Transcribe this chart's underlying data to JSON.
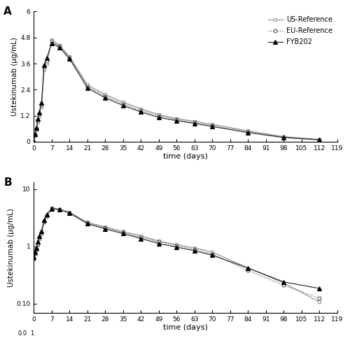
{
  "time_points_a": [
    0,
    0.5,
    1,
    1.5,
    2,
    3,
    4,
    5,
    7,
    10,
    14,
    21,
    28,
    35,
    42,
    49,
    56,
    63,
    70,
    84,
    98,
    112
  ],
  "fyb202_linear": [
    0.0,
    0.35,
    0.65,
    1.05,
    1.35,
    1.8,
    3.55,
    3.85,
    4.55,
    4.35,
    3.82,
    2.48,
    2.02,
    1.67,
    1.37,
    1.12,
    0.97,
    0.84,
    0.7,
    0.42,
    0.19,
    0.085
  ],
  "eu_ref_linear": [
    0.0,
    0.32,
    0.6,
    0.98,
    1.28,
    1.7,
    3.45,
    3.72,
    4.62,
    4.4,
    3.87,
    2.55,
    2.1,
    1.75,
    1.44,
    1.2,
    1.02,
    0.89,
    0.74,
    0.46,
    0.21,
    0.095
  ],
  "us_ref_linear": [
    0.0,
    0.3,
    0.55,
    0.9,
    1.18,
    1.6,
    3.3,
    3.6,
    4.68,
    4.45,
    3.92,
    2.62,
    2.17,
    1.82,
    1.52,
    1.24,
    1.07,
    0.94,
    0.8,
    0.5,
    0.23,
    0.105
  ],
  "time_points_b": [
    0,
    0.5,
    1,
    1.5,
    2,
    3,
    4,
    5,
    7,
    10,
    14,
    21,
    28,
    35,
    42,
    49,
    56,
    63,
    70,
    84,
    98,
    112
  ],
  "fyb202_log": [
    0.65,
    0.8,
    0.95,
    1.2,
    1.5,
    1.85,
    2.9,
    3.6,
    4.55,
    4.35,
    3.82,
    2.48,
    2.02,
    1.67,
    1.37,
    1.12,
    0.97,
    0.84,
    0.7,
    0.42,
    0.24,
    0.185
  ],
  "eu_ref_log": [
    0.62,
    0.76,
    0.9,
    1.12,
    1.42,
    1.75,
    2.75,
    3.45,
    4.62,
    4.4,
    3.87,
    2.55,
    2.1,
    1.75,
    1.44,
    1.2,
    1.02,
    0.89,
    0.74,
    0.38,
    0.21,
    0.125
  ],
  "us_ref_log": [
    0.6,
    0.72,
    0.86,
    1.05,
    1.35,
    1.65,
    2.62,
    3.3,
    4.68,
    4.45,
    3.92,
    2.62,
    2.17,
    1.82,
    1.52,
    1.24,
    1.07,
    0.94,
    0.8,
    0.42,
    0.23,
    0.108
  ],
  "xticks": [
    0,
    7,
    14,
    21,
    28,
    35,
    42,
    49,
    56,
    63,
    70,
    77,
    84,
    91,
    98,
    105,
    112,
    119
  ],
  "xlabel": "time (days)",
  "ylabel": "Ustekinumab (μg/mL)",
  "panel_a_yticks": [
    0,
    1.2,
    2.4,
    3.6,
    4.8,
    6.0
  ],
  "panel_a_ytick_labels": [
    "0",
    "1.2",
    "2.4",
    "3.6",
    "4.8",
    "6"
  ],
  "panel_a_ylim": [
    0,
    6.0
  ],
  "panel_b_ylim_log": [
    0.07,
    13.0
  ],
  "fig_width": 5.0,
  "fig_height": 4.84
}
